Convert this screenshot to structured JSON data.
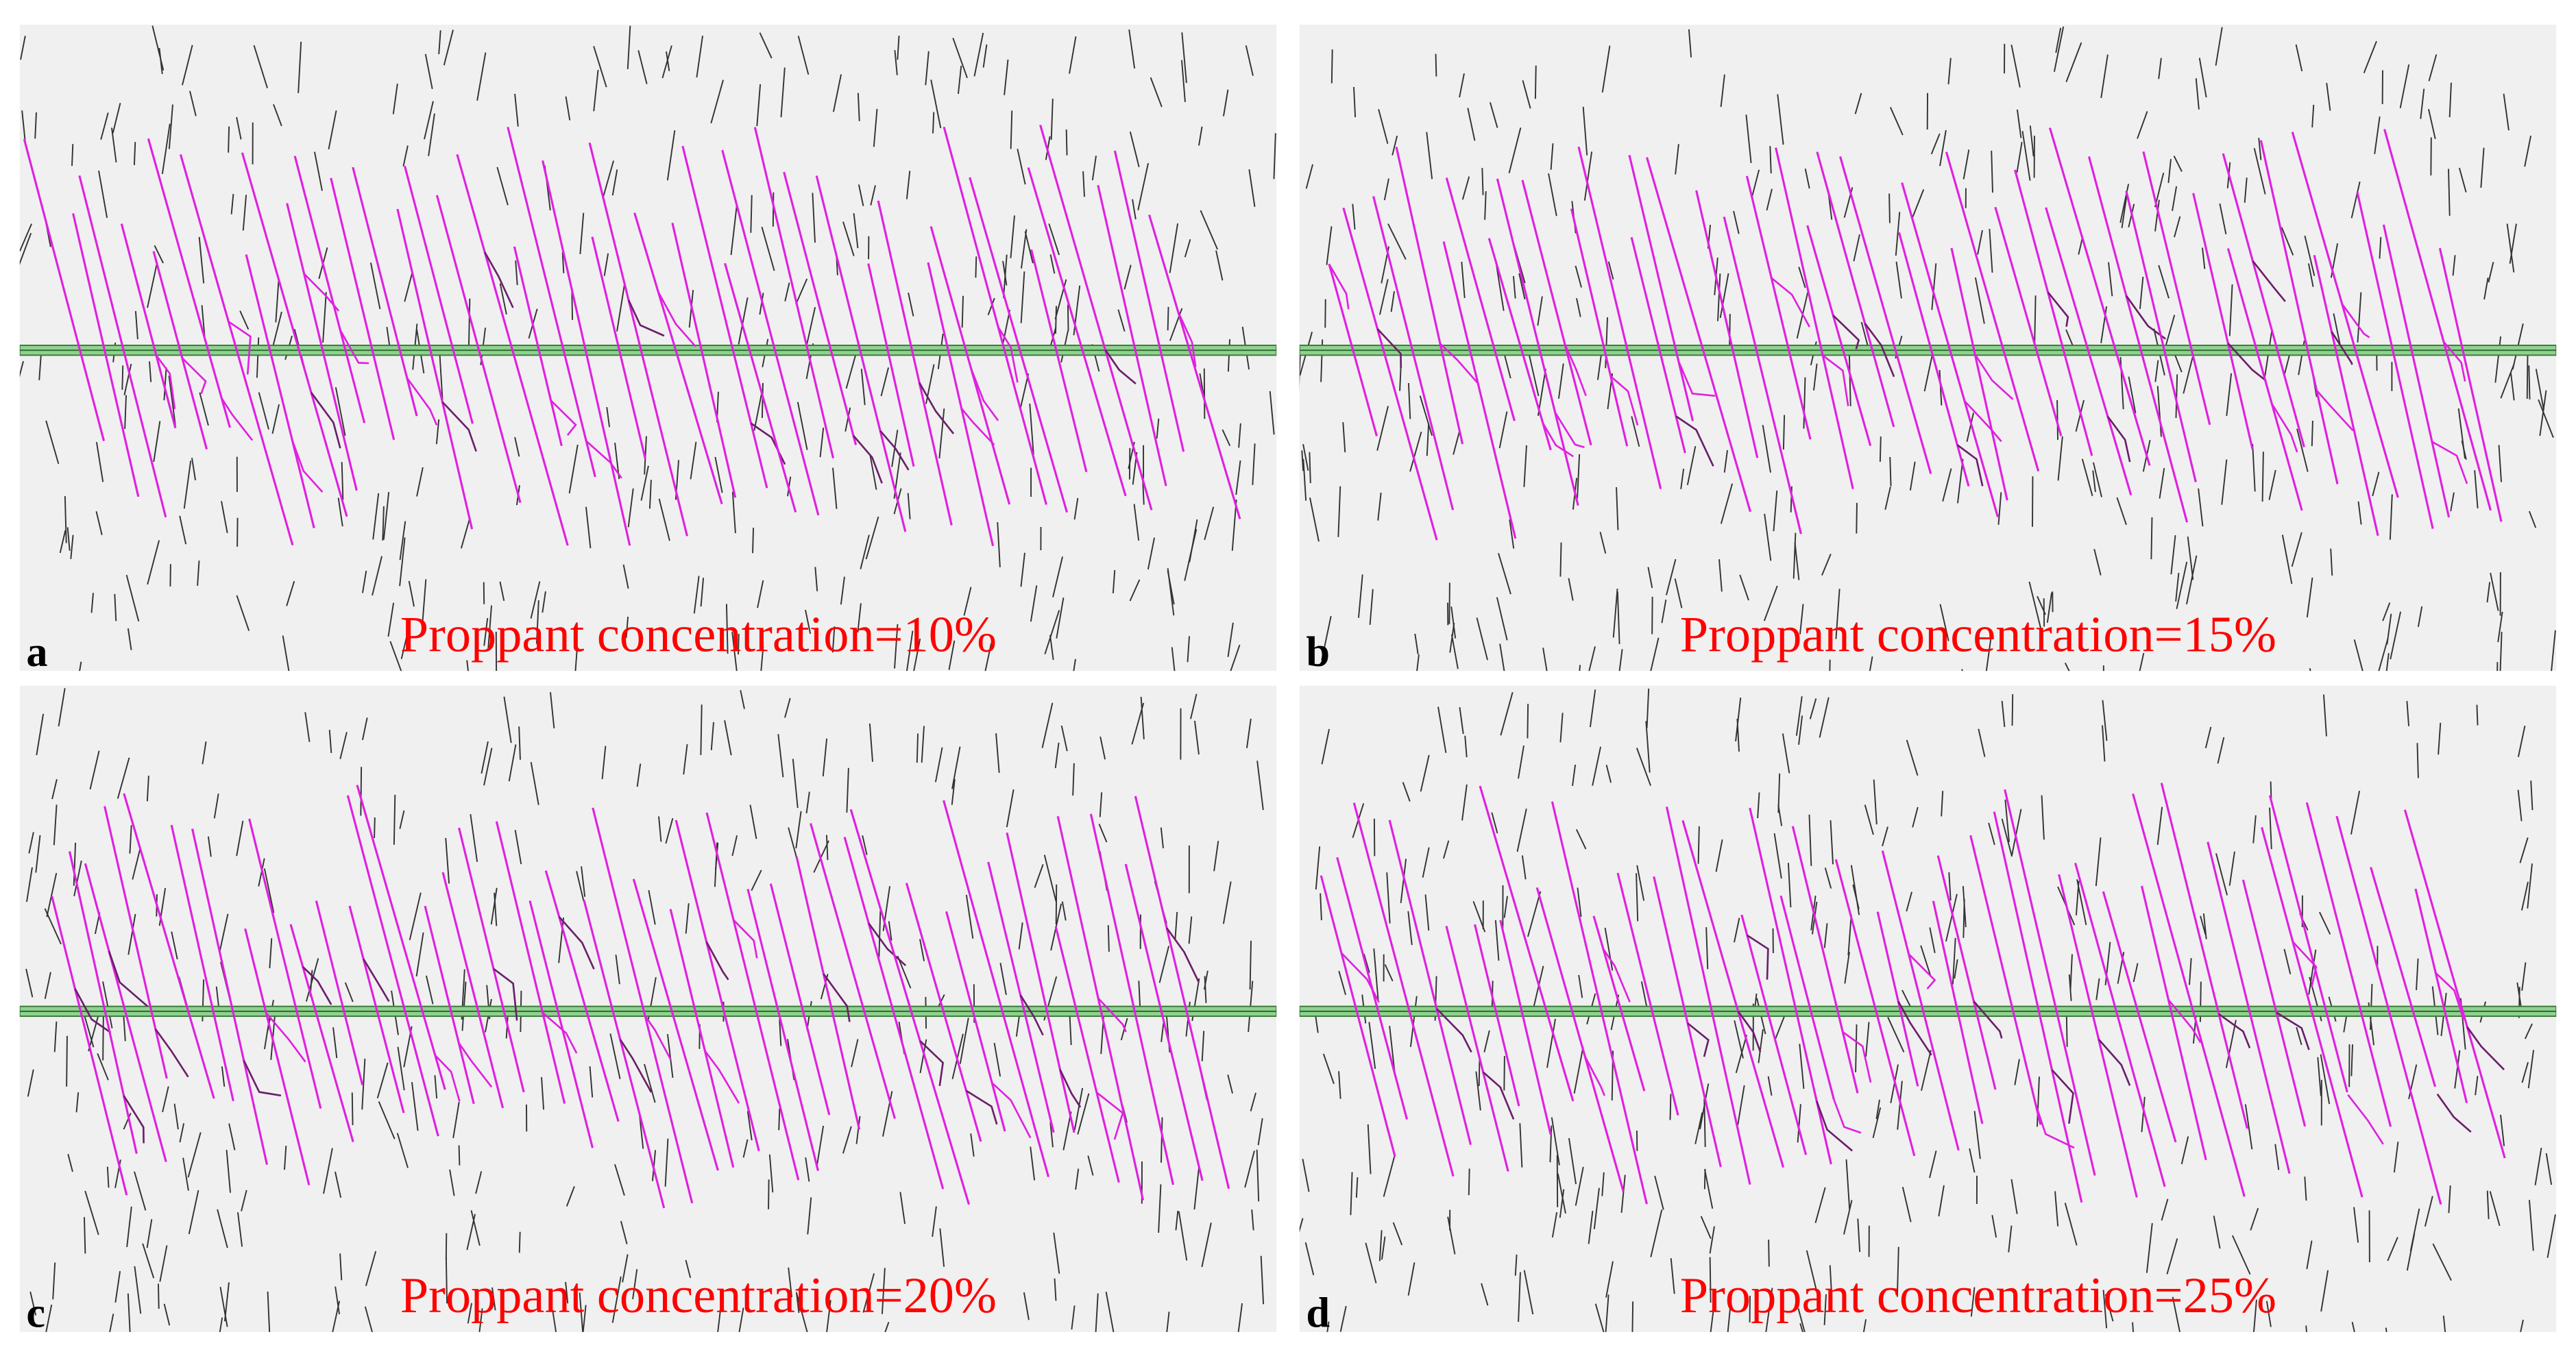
{
  "panels": [
    {
      "label": "a",
      "caption": "Proppant concentration=10%"
    },
    {
      "label": "b",
      "caption": "Proppant concentration=15%"
    },
    {
      "label": "c",
      "caption": "Proppant concentration=20%"
    },
    {
      "label": "d",
      "caption": "Proppant concentration=25%"
    }
  ]
}
